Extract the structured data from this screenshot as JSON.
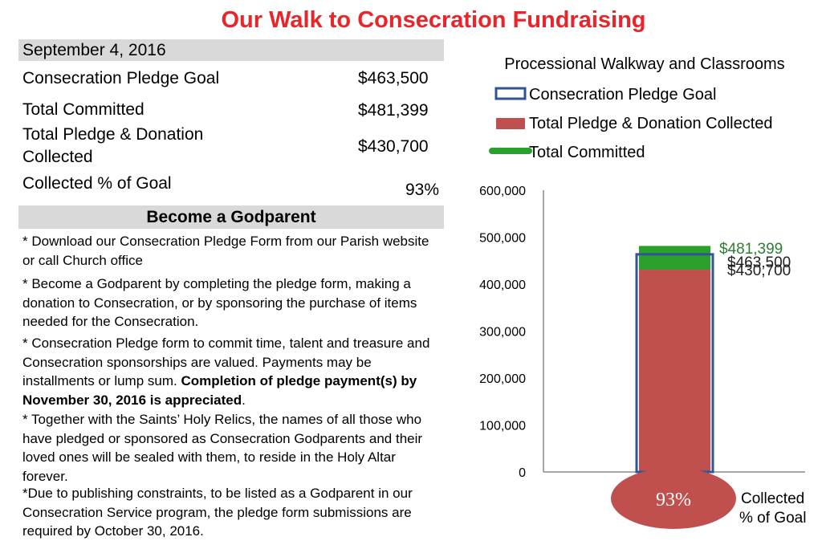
{
  "title": "Our Walk to Consecration Fundraising",
  "summary": {
    "date": "September 4, 2016",
    "rows": [
      {
        "label": "Consecration Pledge Goal",
        "value": "$463,500"
      },
      {
        "label": "Total Committed",
        "value": "$481,399"
      },
      {
        "label_line1": "Total Pledge & Donation",
        "label_line2": "Collected",
        "value": "$430,700"
      },
      {
        "label": "Collected % of Goal",
        "value": "93%"
      }
    ]
  },
  "godparent": {
    "heading": "Become a Godparent",
    "p1": "* Download our Consecration Pledge Form from our Parish website or call Church office",
    "p2": "* Become a Godparent by completing the pledge form, making a donation to Consecration, or by sponsoring the purchase of items needed for the Consecration.",
    "p3_normal": "* Consecration Pledge form to commit time, talent and treasure and Consecration sponsorships are valued. Payments may be installments or lump sum. ",
    "p3_bold": "Completion of pledge payment(s) by November 30,  2016 is appreciated",
    "p3_end": ".",
    "p4": "*  Together with the Saints’ Holy Relics, the names of all those who have pledged or sponsored as Consecration Godparents and their loved ones will be sealed with them, to reside in the Holy Altar forever.",
    "p5": "*Due to publishing constraints, to be listed as a Godparent in our Consecration Service program, the pledge form submissions are required by October 30, 2016."
  },
  "chart_data": {
    "type": "bar",
    "title": "Processional Walkway and Classrooms",
    "ylim": [
      0,
      600000
    ],
    "yticks": [
      "0",
      "100,000",
      "200,000",
      "300,000",
      "400,000",
      "500,000",
      "600,000"
    ],
    "series": [
      {
        "name": "Consecration Pledge Goal",
        "value": 463500,
        "label": "$463,500",
        "color": "#2f5597"
      },
      {
        "name": "Total Pledge & Donation Collected",
        "value": 430700,
        "label": "$430,700",
        "color": "#c0504d"
      },
      {
        "name": "Total Committed",
        "value": 481399,
        "label": "$481,399",
        "color": "#2ca02c"
      }
    ],
    "percent": "93%",
    "percent_label_line1": "Collected",
    "percent_label_line2": "% of Goal",
    "legend_position": "top"
  }
}
